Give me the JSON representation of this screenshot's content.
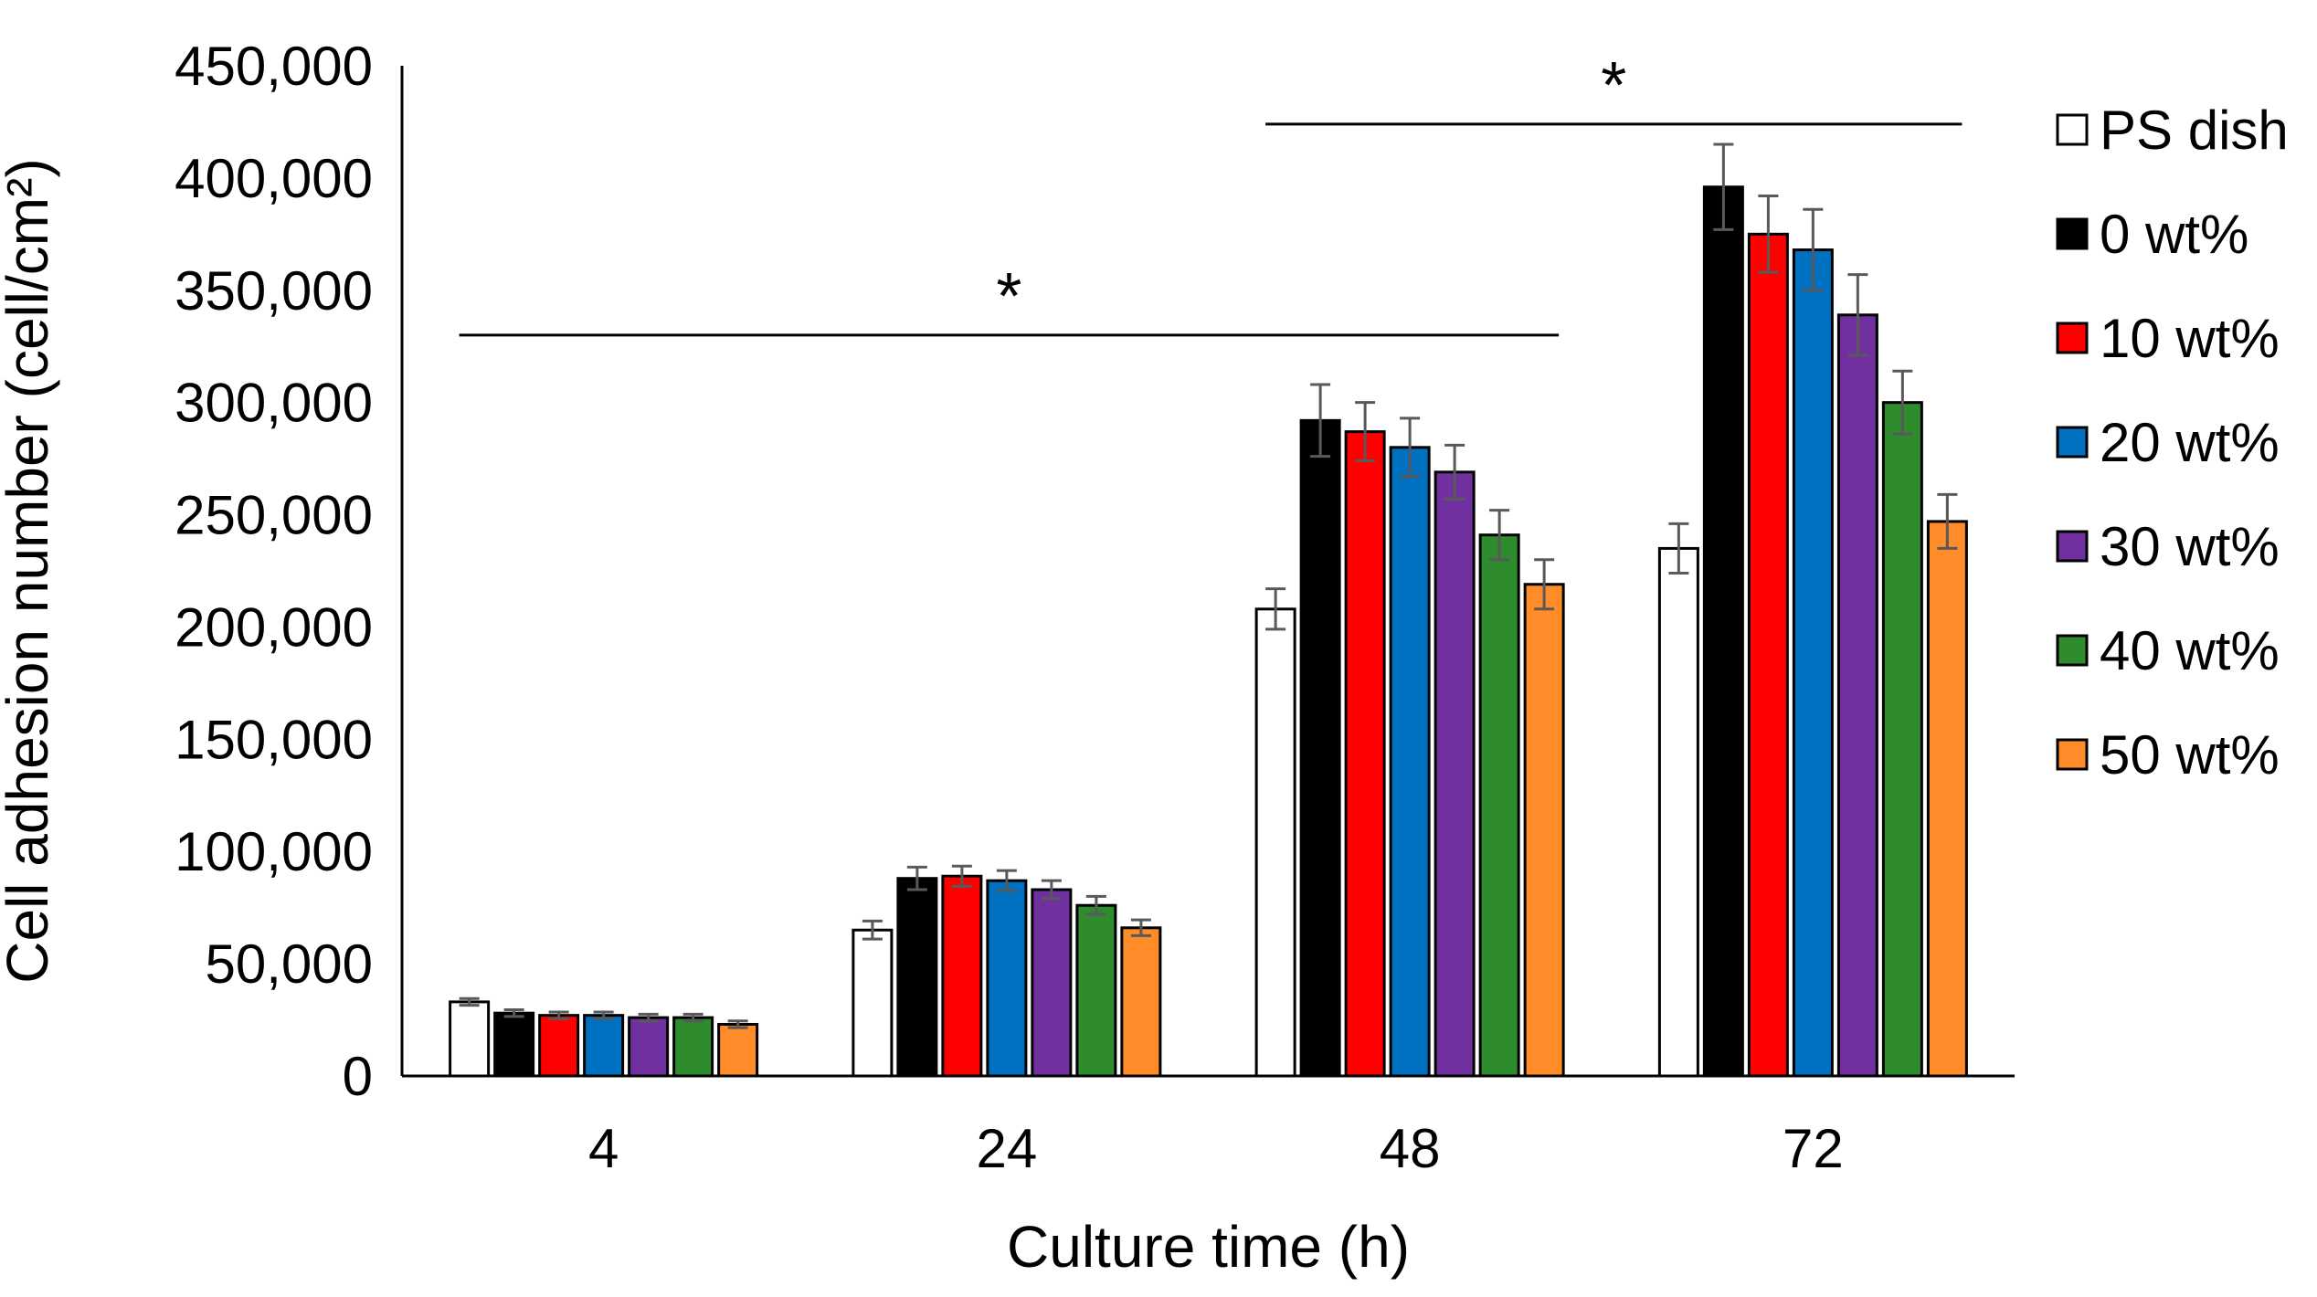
{
  "chart_data": {
    "type": "bar",
    "title": "",
    "xlabel": "Culture time (h)",
    "ylabel": "Cell adhesion number (cell/cm²)",
    "ylim": [
      0,
      450000
    ],
    "yticks": [
      0,
      50000,
      100000,
      150000,
      200000,
      250000,
      300000,
      350000,
      400000,
      450000
    ],
    "ytick_labels": [
      "0",
      "50,000",
      "100,000",
      "150,000",
      "200,000",
      "250,000",
      "300,000",
      "350,000",
      "400,000",
      "450,000"
    ],
    "grid": false,
    "legend_position": "right",
    "categories": [
      "4",
      "24",
      "48",
      "72"
    ],
    "series": [
      {
        "name": "PS dish",
        "color": "#ffffff",
        "values": [
          33000,
          65000,
          208000,
          235000
        ],
        "errors": [
          1500,
          4000,
          9000,
          11000
        ]
      },
      {
        "name": "0 wt%",
        "color": "#000000",
        "values": [
          28000,
          88000,
          292000,
          396000
        ],
        "errors": [
          1500,
          5000,
          16000,
          19000
        ]
      },
      {
        "name": "10 wt%",
        "color": "#ff0000",
        "values": [
          27000,
          89000,
          287000,
          375000
        ],
        "errors": [
          1500,
          4500,
          13000,
          17000
        ]
      },
      {
        "name": "20 wt%",
        "color": "#0070c0",
        "values": [
          27000,
          87000,
          280000,
          368000
        ],
        "errors": [
          1500,
          4500,
          13000,
          18000
        ]
      },
      {
        "name": "30 wt%",
        "color": "#7030a0",
        "values": [
          26000,
          83000,
          269000,
          339000
        ],
        "errors": [
          1500,
          4000,
          12000,
          18000
        ]
      },
      {
        "name": "40 wt%",
        "color": "#2e8b2e",
        "values": [
          26000,
          76000,
          241000,
          300000
        ],
        "errors": [
          1500,
          4000,
          11000,
          14000
        ]
      },
      {
        "name": "50 wt%",
        "color": "#ff8c28",
        "values": [
          23000,
          66000,
          219000,
          247000
        ],
        "errors": [
          1500,
          3500,
          11000,
          12000
        ]
      }
    ],
    "annotations": [
      {
        "text": "*",
        "from_category": "4",
        "to_category": "48",
        "y": 330000
      },
      {
        "text": "*",
        "from_category": "48",
        "to_category": "72",
        "y": 424000
      }
    ]
  }
}
